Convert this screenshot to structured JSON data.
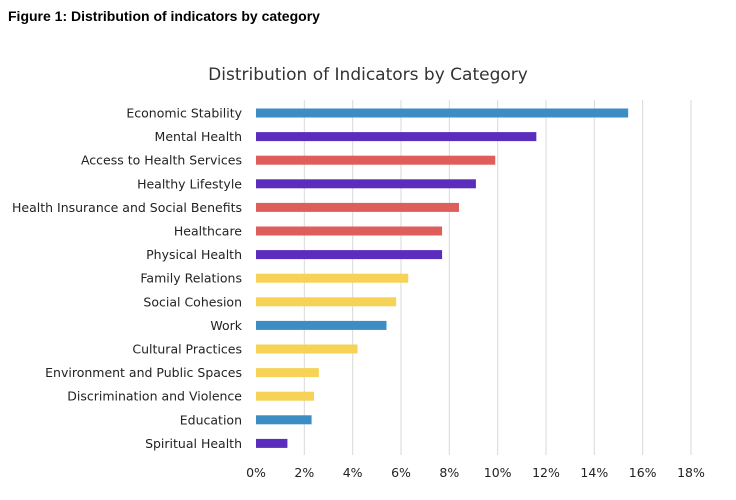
{
  "figure_caption": "Figure 1: Distribution of indicators by category",
  "colors": {
    "blue": "#3c8dc4",
    "purple": "#5b2dbd",
    "red": "#dd5e5a",
    "yellow": "#f6d257",
    "grid": "#d9d9d9"
  },
  "chart_data": {
    "type": "bar",
    "orientation": "horizontal",
    "title": "Distribution of Indicators by Category",
    "xlabel": "",
    "ylabel": "",
    "xlim": [
      0,
      18
    ],
    "x_ticks": [
      "0%",
      "2%",
      "4%",
      "6%",
      "8%",
      "10%",
      "12%",
      "14%",
      "16%",
      "18%"
    ],
    "grid": true,
    "categories": [
      "Economic Stability",
      "Mental Health",
      "Access to Health Services",
      "Healthy Lifestyle",
      "Health Insurance and Social Benefits",
      "Healthcare",
      "Physical Health",
      "Family Relations",
      "Social Cohesion",
      "Work",
      "Cultural Practices",
      "Environment and Public Spaces",
      "Discrimination and Violence",
      "Education",
      "Spiritual Health"
    ],
    "values": [
      15.4,
      11.6,
      9.9,
      9.1,
      8.4,
      7.7,
      7.7,
      6.3,
      5.8,
      5.4,
      4.2,
      2.6,
      2.4,
      2.3,
      1.3
    ],
    "bar_colors": [
      "blue",
      "purple",
      "red",
      "purple",
      "red",
      "red",
      "purple",
      "yellow",
      "yellow",
      "blue",
      "yellow",
      "yellow",
      "yellow",
      "blue",
      "purple"
    ]
  }
}
